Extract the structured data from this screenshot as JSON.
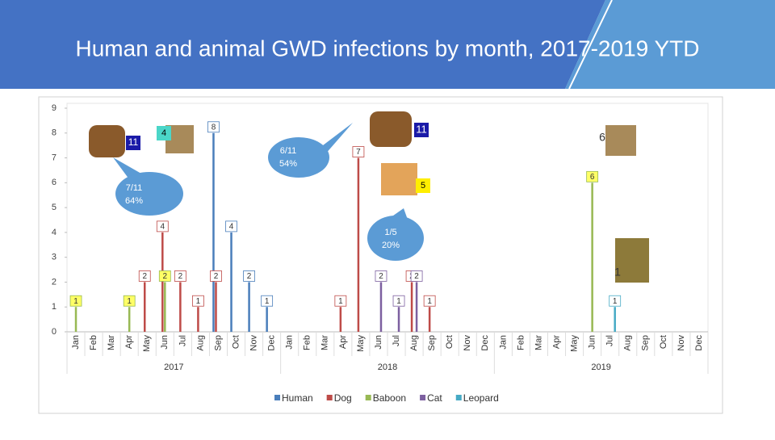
{
  "chart_data": {
    "type": "bar",
    "title": "Human and animal GWD infections by month, 2017-2019 YTD",
    "categories": [
      "Jan",
      "Feb",
      "Mar",
      "Apr",
      "May",
      "Jun",
      "Jul",
      "Aug",
      "Sep",
      "Oct",
      "Nov",
      "Dec",
      "Jan",
      "Feb",
      "Mar",
      "Apr",
      "May",
      "Jun",
      "Jul",
      "Aug",
      "Sep",
      "Oct",
      "Nov",
      "Dec",
      "Jan",
      "Feb",
      "Mar",
      "Apr",
      "May",
      "Jun",
      "Jul",
      "Aug",
      "Sep",
      "Oct",
      "Nov",
      "Dec"
    ],
    "years": [
      "2017",
      "2018",
      "2019"
    ],
    "series": [
      {
        "name": "Human",
        "color": "#4a7ebb",
        "values": [
          null,
          null,
          null,
          null,
          null,
          null,
          null,
          null,
          8,
          4,
          2,
          1,
          null,
          null,
          null,
          null,
          null,
          null,
          null,
          null,
          null,
          null,
          null,
          null,
          null,
          null,
          null,
          null,
          null,
          null,
          null,
          null,
          null,
          null,
          null,
          null
        ]
      },
      {
        "name": "Dog",
        "color": "#be4b48",
        "values": [
          null,
          null,
          null,
          null,
          2,
          4,
          2,
          1,
          2,
          null,
          null,
          null,
          null,
          null,
          null,
          1,
          7,
          null,
          null,
          2,
          1,
          null,
          null,
          null,
          null,
          null,
          null,
          null,
          null,
          null,
          null,
          null,
          null,
          null,
          null,
          null
        ]
      },
      {
        "name": "Baboon",
        "color": "#98b954",
        "values": [
          1,
          null,
          null,
          1,
          null,
          2,
          null,
          null,
          null,
          null,
          null,
          null,
          null,
          null,
          null,
          null,
          null,
          null,
          null,
          null,
          null,
          null,
          null,
          null,
          null,
          null,
          null,
          null,
          null,
          6,
          null,
          null,
          null,
          null,
          null,
          null
        ]
      },
      {
        "name": "Cat",
        "color": "#7d60a0",
        "values": [
          null,
          null,
          null,
          null,
          null,
          null,
          null,
          null,
          null,
          null,
          null,
          null,
          null,
          null,
          null,
          null,
          null,
          2,
          1,
          2,
          null,
          null,
          null,
          null,
          null,
          null,
          null,
          null,
          null,
          null,
          null,
          null,
          null,
          null,
          null,
          null
        ]
      },
      {
        "name": "Leopard",
        "color": "#46aac5",
        "values": [
          null,
          null,
          null,
          null,
          null,
          null,
          null,
          null,
          null,
          null,
          null,
          null,
          null,
          null,
          null,
          null,
          null,
          null,
          null,
          null,
          null,
          null,
          null,
          null,
          null,
          null,
          null,
          null,
          null,
          null,
          1,
          null,
          null,
          null,
          null,
          null
        ]
      }
    ],
    "ylim": [
      0,
      9
    ],
    "yticks": [
      0,
      1,
      2,
      3,
      4,
      5,
      6,
      7,
      8,
      9
    ],
    "grid": false,
    "legend": "bottom",
    "annotations": [
      "4",
      "11",
      "6/11",
      "54%",
      "7/11",
      "64%",
      "11",
      "5",
      "1/5",
      "20%",
      "6",
      "1"
    ]
  }
}
